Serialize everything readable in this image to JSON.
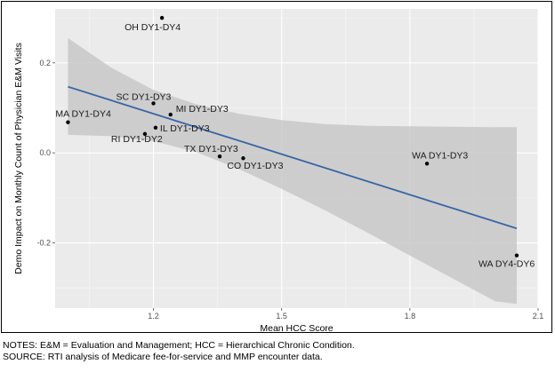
{
  "chart_data": {
    "type": "scatter",
    "xlabel": "Mean HCC Score",
    "ylabel": "Demo Impact on Monthly Count of Physician E&M Visits",
    "xlim": [
      0.97,
      2.1
    ],
    "ylim": [
      -0.345,
      0.32
    ],
    "xticks": [
      1.2,
      1.5,
      1.8,
      2.1
    ],
    "xtick_labels": [
      "1.2",
      "1.5",
      "1.8",
      "2.1"
    ],
    "yticks": [
      -0.2,
      0.0,
      0.2
    ],
    "ytick_labels": [
      "-0.2",
      "0.0",
      "0.2"
    ],
    "grid": true,
    "background": "#ebebeb",
    "points": [
      {
        "label": "OH DY1-DY4",
        "x": 1.22,
        "y": 0.3
      },
      {
        "label": "SC DY1-DY3",
        "x": 1.2,
        "y": 0.11
      },
      {
        "label": "MI DY1-DY3",
        "x": 1.24,
        "y": 0.085
      },
      {
        "label": "MA DY1-DY4",
        "x": 1.0,
        "y": 0.068
      },
      {
        "label": "IL DY1-DY3",
        "x": 1.205,
        "y": 0.056
      },
      {
        "label": "RI DY1-DY2",
        "x": 1.18,
        "y": 0.042
      },
      {
        "label": "TX DY1-DY3",
        "x": 1.355,
        "y": -0.008
      },
      {
        "label": "CO DY1-DY3",
        "x": 1.41,
        "y": -0.012
      },
      {
        "label": "WA DY1-DY3",
        "x": 1.84,
        "y": -0.024
      },
      {
        "label": "WA DY4-DY6",
        "x": 2.05,
        "y": -0.228
      }
    ],
    "fit_line": {
      "x": [
        1.0,
        2.05
      ],
      "y": [
        0.147,
        -0.168
      ],
      "color": "#3465a4"
    },
    "confidence_band": {
      "x": [
        1.0,
        1.1,
        1.2,
        1.3,
        1.4,
        1.5,
        1.6,
        1.7,
        1.8,
        1.9,
        2.0,
        2.05
      ],
      "upper": [
        0.255,
        0.19,
        0.14,
        0.108,
        0.087,
        0.073,
        0.064,
        0.06,
        0.059,
        0.058,
        0.057,
        0.057
      ],
      "lower": [
        0.04,
        0.037,
        0.026,
        0.002,
        -0.036,
        -0.08,
        -0.127,
        -0.177,
        -0.228,
        -0.279,
        -0.33,
        -0.336
      ],
      "color": "#c8c8c8"
    }
  },
  "notes": {
    "line1": "NOTES: E&M = Evaluation and Management; HCC = Hierarchical Chronic Condition.",
    "line2": "SOURCE: RTI analysis of Medicare fee-for-service and MMP encounter data."
  }
}
